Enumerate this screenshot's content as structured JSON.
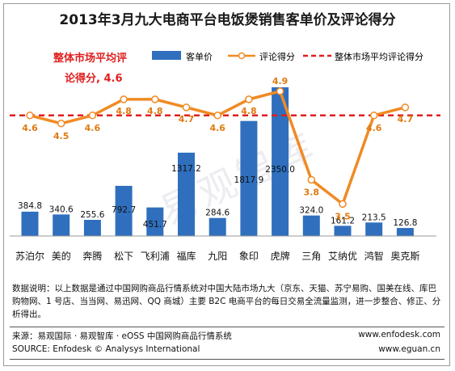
{
  "title": "2013年3月九大电商平台电饭煲销售客单价及评论得分",
  "colors": {
    "bar": "#2f6fbe",
    "line": "#f08a24",
    "avg": "#e01f1f",
    "avg_text": "#e01f1f",
    "value_text": "#e07a10"
  },
  "legend": {
    "bar": "客单价",
    "line": "评论得分",
    "avg": "整体市场平均评论得分"
  },
  "avg_annotation": {
    "line1": "整体市场平均评",
    "line2": "论得分, 4.6"
  },
  "watermark": "易观智库",
  "chart_data": {
    "type": "bar+line",
    "categories": [
      "苏泊尔",
      "美的",
      "奔腾",
      "松下",
      "飞利浦",
      "福库",
      "九阳",
      "象印",
      "虎牌",
      "三角",
      "艾纳优",
      "鸿智",
      "奥克斯"
    ],
    "series": [
      {
        "name": "客单价",
        "type": "bar",
        "values": [
          384.8,
          340.6,
          255.6,
          792.7,
          451.7,
          1317.2,
          284.6,
          1817.9,
          2350.0,
          324.0,
          161.2,
          213.5,
          126.8
        ],
        "labels": [
          "384.8",
          "340.6",
          "255.6",
          "792.7",
          "451.7",
          "1317.2",
          "284.6",
          "1817.9",
          "2350.0",
          "324.0",
          "161.2",
          "213.5",
          "126.8"
        ]
      },
      {
        "name": "评论得分",
        "type": "line",
        "values": [
          4.6,
          4.5,
          4.6,
          4.8,
          4.8,
          4.7,
          4.6,
          4.8,
          4.9,
          3.8,
          3.5,
          4.6,
          4.7
        ],
        "labels": [
          "4.6",
          "4.5",
          "4.6",
          "4.8",
          "4.8",
          "4.7",
          "4.6",
          "4.8",
          "4.9",
          "3.8",
          "3.5",
          "4.6",
          "4.7"
        ]
      },
      {
        "name": "整体市场平均评论得分",
        "type": "hline",
        "value": 4.6
      }
    ],
    "bar_ylim": [
      0,
      2350
    ],
    "line_ylim": [
      2.6,
      5.1
    ],
    "axes_visible": false,
    "grid": false,
    "legend_position": "top"
  },
  "note": "数据说明：以上数据是通过中国网购商品行情系统对中国大陆市场九大（京东、天猫、苏宁易购、国美在线、库巴购物网、1 号店、当当网、易迅网、QQ 商城）主要 B2C 电商平台的每日交易全流量监测，进一步整合、修正、分析得出。",
  "footer": {
    "source_cn": "来源：易观国际 · 易观智库 · eOSS 中国网购商品行情系统",
    "source_en": "SOURCE: Enfodesk © Analysys International",
    "url1": "www.enfodesk.com",
    "url2": "www.eguan.cn"
  }
}
